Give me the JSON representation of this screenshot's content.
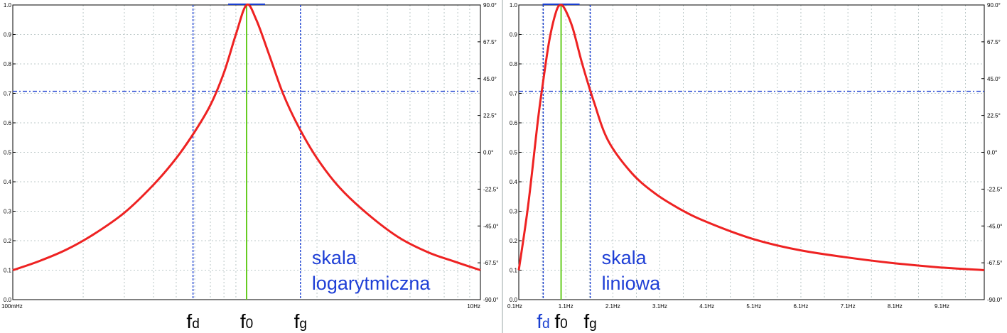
{
  "colors": {
    "curve": "#ee2222",
    "guide": "#1a3fd0",
    "center": "#66cc22",
    "grid": "#a8b8b8",
    "frame": "#000000"
  },
  "chart_data": [
    {
      "type": "line",
      "x_scale": "log",
      "xlim": [
        0.1,
        10
      ],
      "ylim": [
        0,
        1
      ],
      "y2lim": [
        -90,
        90
      ],
      "x_tick_labels": [
        {
          "x": 0.1,
          "label": "100mHz"
        },
        {
          "x": 10,
          "label": "10Hz"
        }
      ],
      "y_ticks": [
        {
          "y": 0.0,
          "label": "0.0"
        },
        {
          "y": 0.1,
          "label": "0.1"
        },
        {
          "y": 0.2,
          "label": "0.2"
        },
        {
          "y": 0.3,
          "label": "0.3"
        },
        {
          "y": 0.4,
          "label": "0.4"
        },
        {
          "y": 0.5,
          "label": "0.5"
        },
        {
          "y": 0.6,
          "label": "0.6"
        },
        {
          "y": 0.7,
          "label": "0.7"
        },
        {
          "y": 0.8,
          "label": "0.8"
        },
        {
          "y": 0.9,
          "label": "0.9"
        },
        {
          "y": 1.0,
          "label": "1.0"
        }
      ],
      "y2_ticks": [
        {
          "y": -90,
          "label": "-90.0°"
        },
        {
          "y": -67.5,
          "label": "-67.5°"
        },
        {
          "y": -45,
          "label": "-45.0°"
        },
        {
          "y": -22.5,
          "label": "-22.5°"
        },
        {
          "y": 0,
          "label": "0.0°"
        },
        {
          "y": 22.5,
          "label": "22.5°"
        },
        {
          "y": 45,
          "label": "45.0°"
        },
        {
          "y": 67.5,
          "label": "67.5°"
        },
        {
          "y": 90,
          "label": "90.0°"
        }
      ],
      "series": [
        {
          "x": [
            0.1,
            0.13,
            0.17,
            0.22,
            0.3,
            0.4,
            0.5,
            0.6,
            0.7,
            0.8,
            0.9,
            1.0,
            1.1,
            1.25,
            1.43,
            1.66,
            2.0,
            2.5,
            3.3,
            4.5,
            6.0,
            7.7,
            10.0
          ],
          "values": [
            0.1,
            0.131,
            0.17,
            0.22,
            0.295,
            0.39,
            0.48,
            0.57,
            0.66,
            0.77,
            0.9,
            1.0,
            0.95,
            0.83,
            0.7,
            0.59,
            0.48,
            0.38,
            0.29,
            0.21,
            0.16,
            0.13,
            0.1
          ]
        }
      ],
      "hline": 0.707,
      "markers": {
        "fd": 0.59,
        "f0": 1.0,
        "fg": 1.7
      },
      "marker_labels": {
        "fd_main": "f",
        "fd_sub": "d",
        "f0_main": "f",
        "f0_sub": "0",
        "fg_main": "f",
        "fg_sub": "g"
      },
      "annotation": [
        "skala",
        "logarytmiczna"
      ]
    },
    {
      "type": "line",
      "x_scale": "linear",
      "xlim": [
        0.1,
        10
      ],
      "ylim": [
        0,
        1
      ],
      "y2lim": [
        -90,
        90
      ],
      "x_tick_labels": [
        {
          "x": 0.1,
          "label": "0.1Hz"
        },
        {
          "x": 1.1,
          "label": "1.1Hz"
        },
        {
          "x": 2.1,
          "label": "2.1Hz"
        },
        {
          "x": 3.1,
          "label": "3.1Hz"
        },
        {
          "x": 4.1,
          "label": "4.1Hz"
        },
        {
          "x": 5.1,
          "label": "5.1Hz"
        },
        {
          "x": 6.1,
          "label": "6.1Hz"
        },
        {
          "x": 7.1,
          "label": "7.1Hz"
        },
        {
          "x": 8.1,
          "label": "8.1Hz"
        },
        {
          "x": 9.1,
          "label": "9.1Hz"
        }
      ],
      "y_ticks": [
        {
          "y": 0.0,
          "label": "0.0"
        },
        {
          "y": 0.1,
          "label": "0.1"
        },
        {
          "y": 0.2,
          "label": "0.2"
        },
        {
          "y": 0.3,
          "label": "0.3"
        },
        {
          "y": 0.4,
          "label": "0.4"
        },
        {
          "y": 0.5,
          "label": "0.5"
        },
        {
          "y": 0.6,
          "label": "0.6"
        },
        {
          "y": 0.7,
          "label": "0.7"
        },
        {
          "y": 0.8,
          "label": "0.8"
        },
        {
          "y": 0.9,
          "label": "0.9"
        },
        {
          "y": 1.0,
          "label": "1.0"
        }
      ],
      "y2_ticks": [
        {
          "y": -90,
          "label": "-90.0°"
        },
        {
          "y": -67.5,
          "label": "-67.5°"
        },
        {
          "y": -45,
          "label": "-45.0°"
        },
        {
          "y": -22.5,
          "label": "-22.5°"
        },
        {
          "y": 0,
          "label": "0.0°"
        },
        {
          "y": 22.5,
          "label": "22.5°"
        },
        {
          "y": 45,
          "label": "45.0°"
        },
        {
          "y": 67.5,
          "label": "67.5°"
        },
        {
          "y": 90,
          "label": "90.0°"
        }
      ],
      "series": [
        {
          "x": [
            0.1,
            0.3,
            0.5,
            0.6,
            0.75,
            0.9,
            1.0,
            1.1,
            1.25,
            1.45,
            1.7,
            2.0,
            2.5,
            3.0,
            3.5,
            4.0,
            5.0,
            6.0,
            7.0,
            8.0,
            9.0,
            10.0
          ],
          "values": [
            0.1,
            0.32,
            0.6,
            0.72,
            0.88,
            0.98,
            1.0,
            0.98,
            0.92,
            0.8,
            0.67,
            0.54,
            0.43,
            0.36,
            0.31,
            0.27,
            0.21,
            0.17,
            0.145,
            0.125,
            0.11,
            0.1
          ]
        }
      ],
      "hline": 0.707,
      "markers": {
        "fd": 0.62,
        "f0": 1.0,
        "fg": 1.62
      },
      "marker_labels": {
        "fd_main": "f",
        "fd_sub": "d",
        "f0_main": "f",
        "f0_sub": "0",
        "fg_main": "f",
        "fg_sub": "g"
      },
      "annotation": [
        "skala",
        "liniowa"
      ]
    }
  ]
}
